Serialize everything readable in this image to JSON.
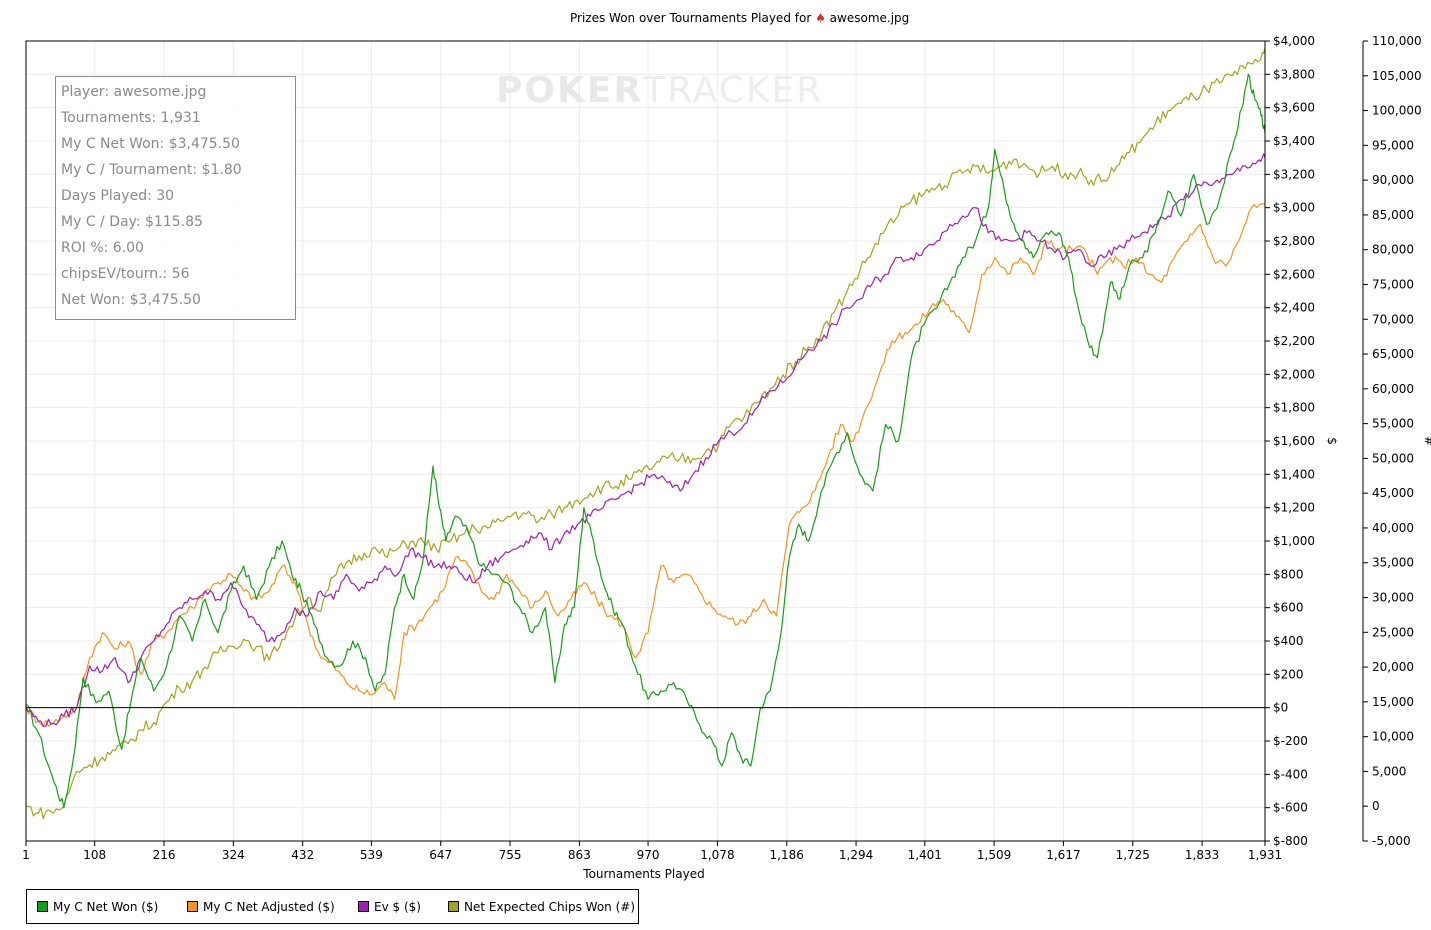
{
  "chart_data": {
    "type": "line",
    "title": "Prizes Won over Tournaments Played for",
    "title_player": "awesome.jpg",
    "title_icon": "spade-icon",
    "watermark": {
      "brand_a": "POKER",
      "brand_b": "TRACKER"
    },
    "xlabel": "Tournaments Played",
    "ylabel_left": "$",
    "ylabel_right": "#",
    "xlim": [
      1,
      1931
    ],
    "ylim_left": [
      -800,
      4000
    ],
    "ylim_right": [
      -5000,
      110000
    ],
    "x_ticks": [
      "1",
      "108",
      "216",
      "324",
      "432",
      "539",
      "647",
      "755",
      "863",
      "970",
      "1,078",
      "1,186",
      "1,294",
      "1,401",
      "1,509",
      "1,617",
      "1,725",
      "1,833",
      "1,931"
    ],
    "y_left_ticks": [
      "$4,000",
      "$3,800",
      "$3,600",
      "$3,400",
      "$3,200",
      "$3,000",
      "$2,800",
      "$2,600",
      "$2,400",
      "$2,200",
      "$2,000",
      "$1,800",
      "$1,600",
      "$1,400",
      "$1,200",
      "$1,000",
      "$800",
      "$600",
      "$400",
      "$200",
      "$0",
      "$-200",
      "$-400",
      "$-600",
      "$-800"
    ],
    "y_right_ticks": [
      "110,000",
      "105,000",
      "100,000",
      "95,000",
      "90,000",
      "85,000",
      "80,000",
      "75,000",
      "70,000",
      "65,000",
      "60,000",
      "55,000",
      "50,000",
      "45,000",
      "40,000",
      "35,000",
      "30,000",
      "25,000",
      "20,000",
      "15,000",
      "10,000",
      "5,000",
      "0",
      "-5,000"
    ],
    "grid": true,
    "legend_position": "bottom-left",
    "series": [
      {
        "name": "My C Net Won ($)",
        "color": "#1a9a1a",
        "axis": "left",
        "x": [
          1,
          20,
          45,
          60,
          75,
          90,
          110,
          130,
          150,
          165,
          180,
          200,
          220,
          240,
          260,
          280,
          300,
          320,
          340,
          360,
          380,
          400,
          415,
          430,
          450,
          470,
          490,
          510,
          530,
          545,
          560,
          575,
          590,
          605,
          620,
          635,
          645,
          655,
          670,
          690,
          710,
          730,
          750,
          770,
          790,
          810,
          825,
          840,
          855,
          870,
          885,
          900,
          915,
          930,
          950,
          970,
          990,
          1010,
          1030,
          1050,
          1070,
          1085,
          1100,
          1115,
          1130,
          1145,
          1160,
          1175,
          1190,
          1205,
          1220,
          1240,
          1260,
          1280,
          1300,
          1320,
          1340,
          1360,
          1380,
          1400,
          1420,
          1440,
          1460,
          1480,
          1500,
          1510,
          1525,
          1540,
          1555,
          1570,
          1590,
          1610,
          1625,
          1640,
          1655,
          1670,
          1690,
          1705,
          1720,
          1740,
          1760,
          1780,
          1800,
          1820,
          1840,
          1860,
          1880,
          1895,
          1905,
          1915,
          1925,
          1931
        ],
        "y": [
          20,
          -150,
          -450,
          -600,
          -300,
          180,
          30,
          100,
          -250,
          50,
          300,
          100,
          250,
          550,
          400,
          650,
          450,
          700,
          850,
          650,
          850,
          1000,
          800,
          700,
          500,
          300,
          250,
          400,
          300,
          100,
          200,
          600,
          800,
          650,
          900,
          1450,
          1200,
          1000,
          1150,
          1050,
          850,
          800,
          750,
          600,
          450,
          600,
          150,
          500,
          600,
          1200,
          1000,
          750,
          600,
          500,
          250,
          50,
          100,
          150,
          50,
          -100,
          -200,
          -350,
          -150,
          -300,
          -350,
          0,
          100,
          400,
          900,
          1100,
          1000,
          1300,
          1500,
          1650,
          1400,
          1300,
          1700,
          1600,
          2100,
          2300,
          2400,
          2550,
          2700,
          2800,
          3000,
          3350,
          3100,
          2900,
          2800,
          2700,
          2850,
          2850,
          2700,
          2400,
          2200,
          2100,
          2550,
          2450,
          2650,
          2700,
          2850,
          3100,
          2950,
          3200,
          2900,
          3050,
          3350,
          3600,
          3800,
          3650,
          3550,
          3450
        ]
      },
      {
        "name": "My C Net Adjusted ($)",
        "color": "#f39322",
        "axis": "left",
        "x": [
          1,
          20,
          40,
          60,
          80,
          100,
          120,
          140,
          160,
          180,
          200,
          220,
          240,
          260,
          280,
          300,
          320,
          340,
          360,
          380,
          400,
          420,
          440,
          460,
          480,
          500,
          520,
          540,
          560,
          575,
          590,
          610,
          630,
          650,
          670,
          690,
          710,
          730,
          750,
          770,
          790,
          810,
          830,
          850,
          870,
          890,
          910,
          930,
          950,
          970,
          990,
          1010,
          1030,
          1050,
          1070,
          1090,
          1110,
          1130,
          1150,
          1170,
          1190,
          1210,
          1230,
          1250,
          1270,
          1290,
          1310,
          1330,
          1350,
          1370,
          1390,
          1410,
          1430,
          1450,
          1470,
          1490,
          1510,
          1530,
          1550,
          1570,
          1590,
          1610,
          1630,
          1650,
          1670,
          1690,
          1710,
          1730,
          1750,
          1770,
          1790,
          1810,
          1830,
          1850,
          1870,
          1890,
          1910,
          1931
        ],
        "y": [
          0,
          -80,
          -100,
          -50,
          0,
          300,
          450,
          350,
          400,
          200,
          400,
          450,
          550,
          600,
          700,
          750,
          800,
          700,
          650,
          700,
          850,
          750,
          500,
          300,
          250,
          150,
          100,
          80,
          150,
          50,
          450,
          500,
          600,
          700,
          900,
          850,
          700,
          650,
          800,
          700,
          600,
          700,
          550,
          650,
          750,
          650,
          550,
          500,
          300,
          450,
          850,
          750,
          800,
          700,
          600,
          550,
          500,
          550,
          650,
          550,
          1100,
          1200,
          1300,
          1500,
          1700,
          1600,
          1800,
          2000,
          2200,
          2250,
          2300,
          2400,
          2450,
          2350,
          2250,
          2600,
          2700,
          2600,
          2700,
          2600,
          2800,
          2750,
          2750,
          2750,
          2600,
          2700,
          2650,
          2700,
          2600,
          2550,
          2700,
          2800,
          2900,
          2700,
          2650,
          2800,
          3000,
          3020
        ]
      },
      {
        "name": "Ev $ ($)",
        "color": "#a020b0",
        "axis": "left",
        "x": [
          1,
          20,
          40,
          60,
          80,
          100,
          120,
          140,
          160,
          180,
          200,
          220,
          240,
          260,
          280,
          300,
          320,
          340,
          360,
          380,
          400,
          420,
          440,
          460,
          480,
          500,
          520,
          540,
          560,
          580,
          600,
          620,
          640,
          660,
          680,
          700,
          720,
          740,
          760,
          780,
          800,
          820,
          840,
          860,
          880,
          900,
          920,
          940,
          960,
          980,
          1000,
          1020,
          1040,
          1060,
          1080,
          1100,
          1120,
          1140,
          1160,
          1180,
          1200,
          1220,
          1240,
          1260,
          1280,
          1300,
          1320,
          1340,
          1360,
          1380,
          1400,
          1420,
          1440,
          1460,
          1480,
          1500,
          1520,
          1540,
          1560,
          1580,
          1600,
          1620,
          1640,
          1660,
          1680,
          1700,
          1720,
          1740,
          1760,
          1780,
          1800,
          1820,
          1840,
          1860,
          1880,
          1900,
          1920,
          1931
        ],
        "y": [
          0,
          -80,
          -100,
          -50,
          0,
          250,
          220,
          300,
          150,
          300,
          400,
          500,
          600,
          650,
          700,
          650,
          750,
          600,
          500,
          400,
          450,
          600,
          550,
          700,
          650,
          800,
          700,
          750,
          850,
          800,
          950,
          900,
          850,
          850,
          800,
          750,
          850,
          900,
          950,
          1000,
          1050,
          950,
          1050,
          1100,
          1150,
          1200,
          1250,
          1300,
          1350,
          1400,
          1350,
          1300,
          1400,
          1500,
          1600,
          1650,
          1700,
          1800,
          1900,
          1950,
          2050,
          2150,
          2200,
          2300,
          2400,
          2450,
          2550,
          2600,
          2700,
          2700,
          2750,
          2800,
          2900,
          2950,
          3000,
          2850,
          2800,
          2800,
          2850,
          2800,
          2750,
          2700,
          2750,
          2650,
          2700,
          2750,
          2800,
          2850,
          2900,
          2950,
          3050,
          3100,
          3150,
          3150,
          3200,
          3250,
          3280,
          3300
        ]
      },
      {
        "name": "Net Expected Chips Won (#)",
        "color": "#a3a420",
        "axis": "right",
        "x": [
          1,
          20,
          40,
          60,
          80,
          100,
          120,
          140,
          160,
          180,
          200,
          220,
          240,
          260,
          280,
          300,
          320,
          340,
          360,
          380,
          400,
          420,
          440,
          460,
          480,
          500,
          520,
          540,
          560,
          580,
          600,
          620,
          640,
          660,
          680,
          700,
          720,
          740,
          760,
          780,
          800,
          820,
          840,
          860,
          880,
          900,
          920,
          940,
          960,
          980,
          1000,
          1020,
          1040,
          1060,
          1080,
          1100,
          1120,
          1140,
          1160,
          1180,
          1200,
          1220,
          1240,
          1260,
          1280,
          1300,
          1320,
          1340,
          1360,
          1380,
          1400,
          1420,
          1440,
          1460,
          1480,
          1500,
          1520,
          1540,
          1560,
          1580,
          1600,
          1620,
          1640,
          1660,
          1680,
          1700,
          1720,
          1740,
          1760,
          1780,
          1800,
          1820,
          1840,
          1860,
          1880,
          1900,
          1920,
          1931
        ],
        "y": [
          0,
          -1000,
          -800,
          0,
          5000,
          6000,
          7000,
          8000,
          9000,
          11000,
          12000,
          15000,
          17000,
          18000,
          20000,
          22000,
          23000,
          24000,
          23000,
          21000,
          24000,
          27000,
          30000,
          28000,
          33000,
          35000,
          36000,
          37000,
          36000,
          37000,
          38000,
          38000,
          37000,
          38000,
          39000,
          40000,
          40000,
          41000,
          42000,
          42000,
          41000,
          42000,
          43000,
          44000,
          45000,
          46000,
          46000,
          47000,
          48000,
          49000,
          50000,
          50000,
          50000,
          51000,
          52000,
          55000,
          56000,
          58000,
          60000,
          62000,
          64000,
          66000,
          68000,
          71000,
          74000,
          77000,
          80000,
          83000,
          85000,
          87000,
          88000,
          89000,
          90000,
          91000,
          92000,
          91000,
          92000,
          93000,
          92000,
          91000,
          92000,
          91000,
          91000,
          90000,
          90000,
          92000,
          94000,
          96000,
          98000,
          100000,
          101000,
          102000,
          103000,
          104000,
          105000,
          106000,
          107000,
          109000
        ]
      }
    ]
  },
  "stats_box": {
    "lines": [
      "Player: awesome.jpg",
      "Tournaments: 1,931",
      "My C Net Won: $3,475.50",
      "My C / Tournament: $1.80",
      "Days Played: 30",
      "My C / Day: $115.85",
      "ROI %: 6.00",
      "chipsEV/tourn.: 56",
      "Net Won: $3,475.50"
    ]
  }
}
